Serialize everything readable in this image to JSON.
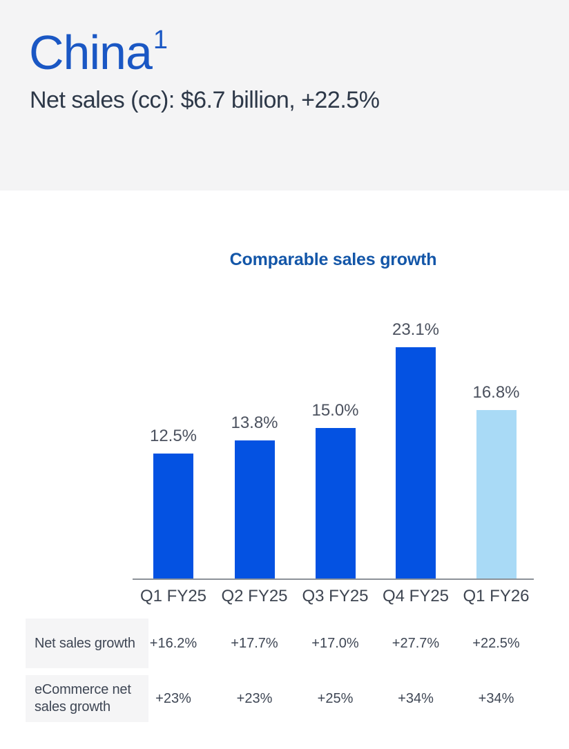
{
  "header": {
    "title": "China",
    "superscript": "1",
    "subtitle": "Net sales (cc): $6.7 billion, +22.5%"
  },
  "chart_data": {
    "type": "bar",
    "title": "Comparable sales growth",
    "categories": [
      "Q1 FY25",
      "Q2 FY25",
      "Q3 FY25",
      "Q4 FY25",
      "Q1 FY26"
    ],
    "values": [
      12.5,
      13.8,
      15.0,
      23.1,
      16.8
    ],
    "value_labels": [
      "12.5%",
      "13.8%",
      "15.0%",
      "23.1%",
      "16.8%"
    ],
    "bar_colors": [
      "#0452e2",
      "#0452e2",
      "#0452e2",
      "#0452e2",
      "#a9daf6"
    ],
    "highlight_index": 4,
    "xlabel": "",
    "ylabel": "",
    "ylim": [
      0,
      25
    ],
    "grid": false,
    "legend": false,
    "data_labels_position": "above-bars"
  },
  "table": {
    "rows": [
      {
        "label": "Net sales growth",
        "values": [
          "+16.2%",
          "+17.7%",
          "+17.0%",
          "+27.7%",
          "+22.5%"
        ]
      },
      {
        "label": "eCommerce net sales growth",
        "values": [
          "+23%",
          "+23%",
          "+25%",
          "+34%",
          "+34%"
        ]
      }
    ]
  },
  "colors": {
    "header_band_bg": "#f4f4f5",
    "title_blue": "#1a57c4",
    "chart_title_blue": "#1356a8",
    "bar_blue": "#0452e2",
    "bar_light_blue": "#a9daf6",
    "axis_gray": "#8b9198",
    "text_dark": "#2d3848",
    "table_cell_bg": "#f5f5f6"
  }
}
